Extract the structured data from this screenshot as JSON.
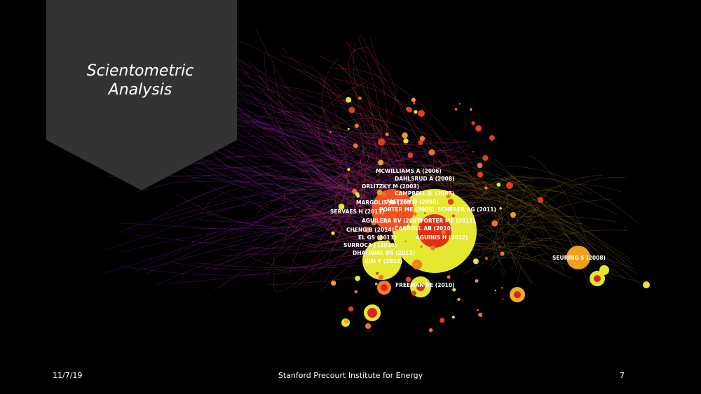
{
  "slide": {
    "title": "Scientometric Analysis",
    "labels": [
      "MCWILLIAMS A (2006)",
      "DAHLSRUD A (2008)",
      "ORLITZKY M (2003)",
      "CAMPBELL JL (2007)",
      "MARGOLIS JD (2003)",
      "MATTEN D (2008)",
      "SERVAES H (2013)",
      "PORTER ME (2006)",
      "SCHERER AG (2011)",
      "AGUILERA RV (2007)",
      "PORTER ME (2011)",
      "CHENG B (2014)",
      "CARROLL AB (2010)",
      "EL GS (2011)",
      "AGUINIS H (2012)",
      "SURROCA J (2010)",
      "DHALIWAL DS (2011)",
      "KIM Y (2012)",
      "FREEMAN RE (2010)",
      "SEURING S (2008)"
    ],
    "footer": {
      "date": "11/7/19",
      "organization": "Stanford Precourt Institute for Energy",
      "page": "7"
    }
  }
}
